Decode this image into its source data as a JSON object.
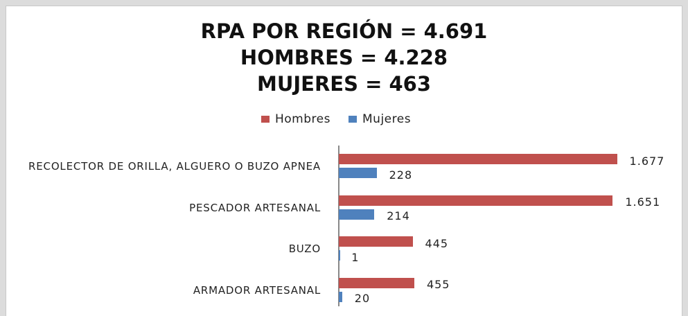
{
  "chart_data": {
    "type": "bar",
    "orientation": "horizontal",
    "title": [
      "RPA POR REGIÓN = 4.691",
      "HOMBRES = 4.228",
      "MUJERES = 463"
    ],
    "categories": [
      "RECOLECTOR DE ORILLA, ALGUERO O BUZO APNEA",
      "PESCADOR ARTESANAL",
      "BUZO",
      "ARMADOR ARTESANAL"
    ],
    "series": [
      {
        "name": "Hombres",
        "color": "#c0504d",
        "values": [
          1677,
          1651,
          445,
          455
        ],
        "value_labels": [
          "1.677",
          "1.651",
          "445",
          "455"
        ]
      },
      {
        "name": "Mujeres",
        "color": "#4f81bd",
        "values": [
          228,
          214,
          1,
          20
        ],
        "value_labels": [
          "228",
          "214",
          "1",
          "20"
        ]
      }
    ],
    "xlim": [
      0,
      1800
    ],
    "legend": "top"
  }
}
